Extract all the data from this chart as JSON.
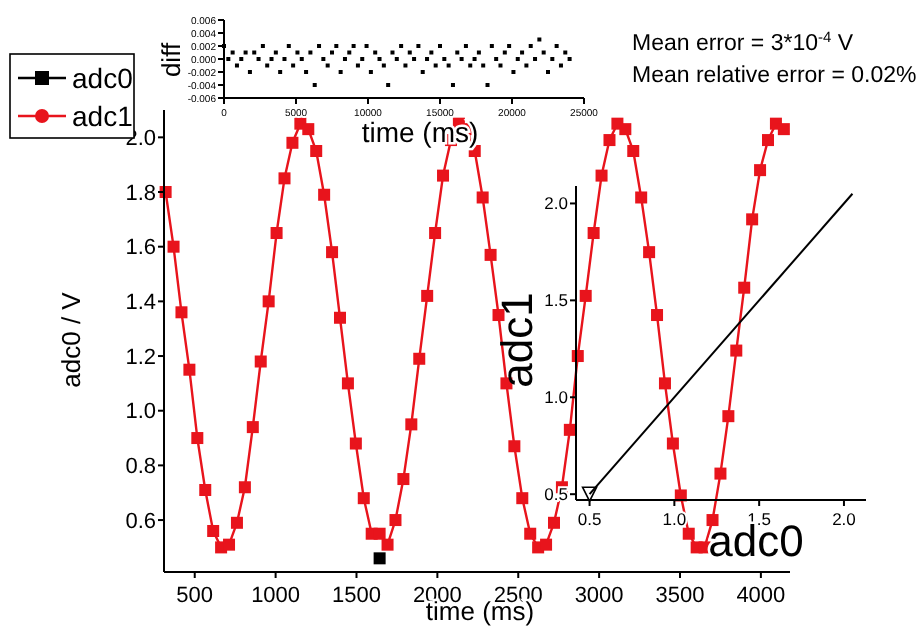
{
  "chart_data": [
    {
      "type": "line",
      "xlabel": "time (ms)",
      "ylabel": "adc0 / V",
      "xlim": [
        310,
        4180
      ],
      "ylim": [
        0.41,
        2.1
      ],
      "xticks": [
        500,
        1000,
        1500,
        2000,
        2500,
        3000,
        3500,
        4000
      ],
      "yticks": [
        0.6,
        0.8,
        {
          "value": 1,
          "label": "1.0"
        },
        1.2,
        1.4,
        1.6,
        1.8,
        {
          "value": 2,
          "label": "2.0"
        }
      ],
      "x": [
        320,
        369,
        418,
        467,
        516,
        565,
        614,
        663,
        712,
        761,
        810,
        859,
        908,
        957,
        1006,
        1055,
        1104,
        1153,
        1202,
        1251,
        1300,
        1349,
        1398,
        1447,
        1496,
        1545,
        1594,
        1643,
        1692,
        1741,
        1790,
        1839,
        1888,
        1937,
        1986,
        2035,
        2084,
        2133,
        2182,
        2231,
        2280,
        2329,
        2378,
        2427,
        2476,
        2525,
        2574,
        2623,
        2672,
        2721,
        2770,
        2819,
        2868,
        2917,
        2966,
        3015,
        3064,
        3113,
        3162,
        3211,
        3260,
        3309,
        3358,
        3407,
        3456,
        3505,
        3554,
        3603,
        3652,
        3701,
        3750,
        3799,
        3848,
        3897,
        3946,
        3995,
        4044,
        4093,
        4142
      ],
      "series": [
        {
          "name": "adc0",
          "color": "#000000",
          "marker": "square",
          "values": [
            null,
            null,
            null,
            null,
            null,
            null,
            null,
            null,
            null,
            null,
            null,
            null,
            null,
            null,
            null,
            null,
            null,
            null,
            null,
            null,
            null,
            null,
            null,
            null,
            null,
            null,
            null,
            0.46,
            null,
            null,
            null,
            null,
            null,
            null,
            null,
            null,
            null,
            null,
            null,
            null,
            null,
            null,
            null,
            null,
            null,
            null,
            null,
            null,
            null,
            null,
            null,
            null,
            null,
            null,
            null,
            null,
            null,
            null,
            null,
            null,
            null,
            null,
            null,
            null,
            null,
            null,
            null,
            null,
            null,
            null,
            null,
            null,
            null,
            null,
            null,
            null,
            null,
            null,
            null
          ]
        },
        {
          "name": "adc1",
          "color": "#e8141c",
          "marker": "square",
          "values": [
            1.8,
            1.6,
            1.36,
            1.15,
            0.9,
            0.71,
            0.56,
            0.5,
            0.51,
            0.59,
            0.72,
            0.94,
            1.18,
            1.4,
            1.65,
            1.85,
            1.98,
            2.05,
            2.03,
            1.95,
            1.79,
            1.58,
            1.34,
            1.1,
            0.88,
            0.68,
            0.55,
            0.55,
            0.51,
            0.6,
            0.75,
            0.95,
            1.19,
            1.42,
            1.65,
            1.86,
            1.99,
            2.05,
            2.03,
            1.95,
            1.78,
            1.57,
            1.35,
            1.1,
            0.87,
            0.68,
            0.55,
            0.5,
            0.51,
            0.59,
            0.72,
            0.93,
            1.2,
            1.42,
            1.65,
            1.86,
            1.99,
            2.05,
            2.03,
            1.95,
            1.78,
            1.58,
            1.35,
            1.1,
            0.88,
            0.69,
            0.55,
            0.5,
            0.5,
            0.6,
            0.77,
            0.98,
            1.22,
            1.45,
            1.7,
            1.88,
            1.99,
            2.05,
            2.03
          ]
        }
      ],
      "legend": "top left",
      "grid": false,
      "annotations": [
        "Mean error = 3*10$^{-4}$ V",
        "Mean relative error = 0.02%"
      ]
    },
    {
      "type": "scatter",
      "xlabel": "time (ms)",
      "ylabel": "diff",
      "xlim": [
        0,
        25000
      ],
      "ylim": [
        -0.006,
        0.006
      ],
      "xticks": [
        0,
        5000,
        10000,
        15000,
        20000,
        25000
      ],
      "yticks": [
        {
          "value": -0.006,
          "label": "-0.006"
        },
        {
          "value": -0.004,
          "label": "-0.004"
        },
        {
          "value": -0.002,
          "label": "-0.002"
        },
        {
          "value": 0,
          "label": "0.000"
        },
        {
          "value": 0.002,
          "label": "0.002"
        },
        {
          "value": 0.004,
          "label": "0.004"
        },
        {
          "value": 0.006,
          "label": "0.006"
        }
      ],
      "x": [
        0,
        300,
        600,
        900,
        1200,
        1500,
        1800,
        2100,
        2400,
        2700,
        3000,
        3300,
        3600,
        3900,
        4200,
        4500,
        4800,
        5100,
        5400,
        5700,
        6000,
        6300,
        6600,
        6900,
        7200,
        7500,
        7800,
        8100,
        8400,
        8700,
        9000,
        9300,
        9600,
        9900,
        10200,
        10500,
        10800,
        11100,
        11400,
        11700,
        12000,
        12300,
        12600,
        12900,
        13200,
        13500,
        13800,
        14100,
        14400,
        14700,
        15000,
        15300,
        15600,
        15900,
        16200,
        16500,
        16800,
        17100,
        17400,
        17700,
        18000,
        18300,
        18600,
        18900,
        19200,
        19500,
        19800,
        20100,
        20400,
        20700,
        21000,
        21300,
        21600,
        21900,
        22200,
        22500,
        22800,
        23100,
        23400,
        23700,
        24000
      ],
      "series": [
        {
          "color": "#000000",
          "marker": "square",
          "values": [
            0.002,
            0,
            0.001,
            -0.001,
            0,
            0.001,
            -0.002,
            0.001,
            0,
            0.002,
            -0.001,
            0,
            0.001,
            -0.002,
            0,
            0.002,
            -0.001,
            0.001,
            0,
            -0.002,
            0.001,
            -0.004,
            0.002,
            0,
            -0.001,
            0.001,
            0.002,
            -0.002,
            0,
            0.001,
            0.002,
            -0.001,
            0,
            0.002,
            -0.002,
            0.001,
            0,
            -0.001,
            -0.004,
            0.001,
            0,
            0.002,
            -0.001,
            0.001,
            0,
            0.002,
            -0.002,
            0,
            0.001,
            -0.001,
            0.002,
            0,
            -0.001,
            -0.004,
            0.001,
            0,
            0.002,
            -0.001,
            0,
            0.001,
            -0.001,
            -0.004,
            0.002,
            0,
            -0.001,
            0.001,
            0.002,
            -0.002,
            0,
            0.001,
            -0.001,
            0.002,
            0,
            0.003,
            0.001,
            -0.002,
            0,
            0.002,
            -0.001,
            0.001,
            0
          ]
        }
      ],
      "grid": false
    },
    {
      "type": "line",
      "xlabel": "adc0",
      "ylabel": "adc1",
      "xlim": [
        0.42,
        2.13
      ],
      "ylim": [
        0.47,
        2.09
      ],
      "xticks": [
        0.5,
        {
          "value": 1,
          "label": "1.0"
        },
        1.5,
        {
          "value": 2,
          "label": "2.0"
        }
      ],
      "yticks": [
        0.5,
        {
          "value": 1,
          "label": "1.0"
        },
        1.5,
        {
          "value": 2,
          "label": "2.0"
        }
      ],
      "series": [
        {
          "color": "#000000",
          "marker": "none",
          "values": [
            0.5,
            2.05
          ]
        },
        {
          "type": "scatter",
          "color": "#000000",
          "marker": "triangle",
          "values": [
            0.5,
            null
          ]
        }
      ],
      "x": [
        0.5,
        2.05
      ],
      "grid": false
    }
  ]
}
